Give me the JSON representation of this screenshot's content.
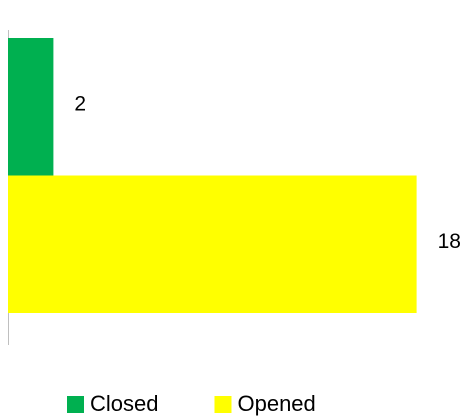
{
  "chart_data": {
    "type": "bar",
    "orientation": "horizontal",
    "categories": [
      null
    ],
    "series": [
      {
        "name": "Closed",
        "color": "#00b050",
        "values": [
          2
        ]
      },
      {
        "name": "Opened",
        "color": "#ffff00",
        "values": [
          18
        ]
      }
    ],
    "xlim": [
      0,
      20
    ]
  }
}
